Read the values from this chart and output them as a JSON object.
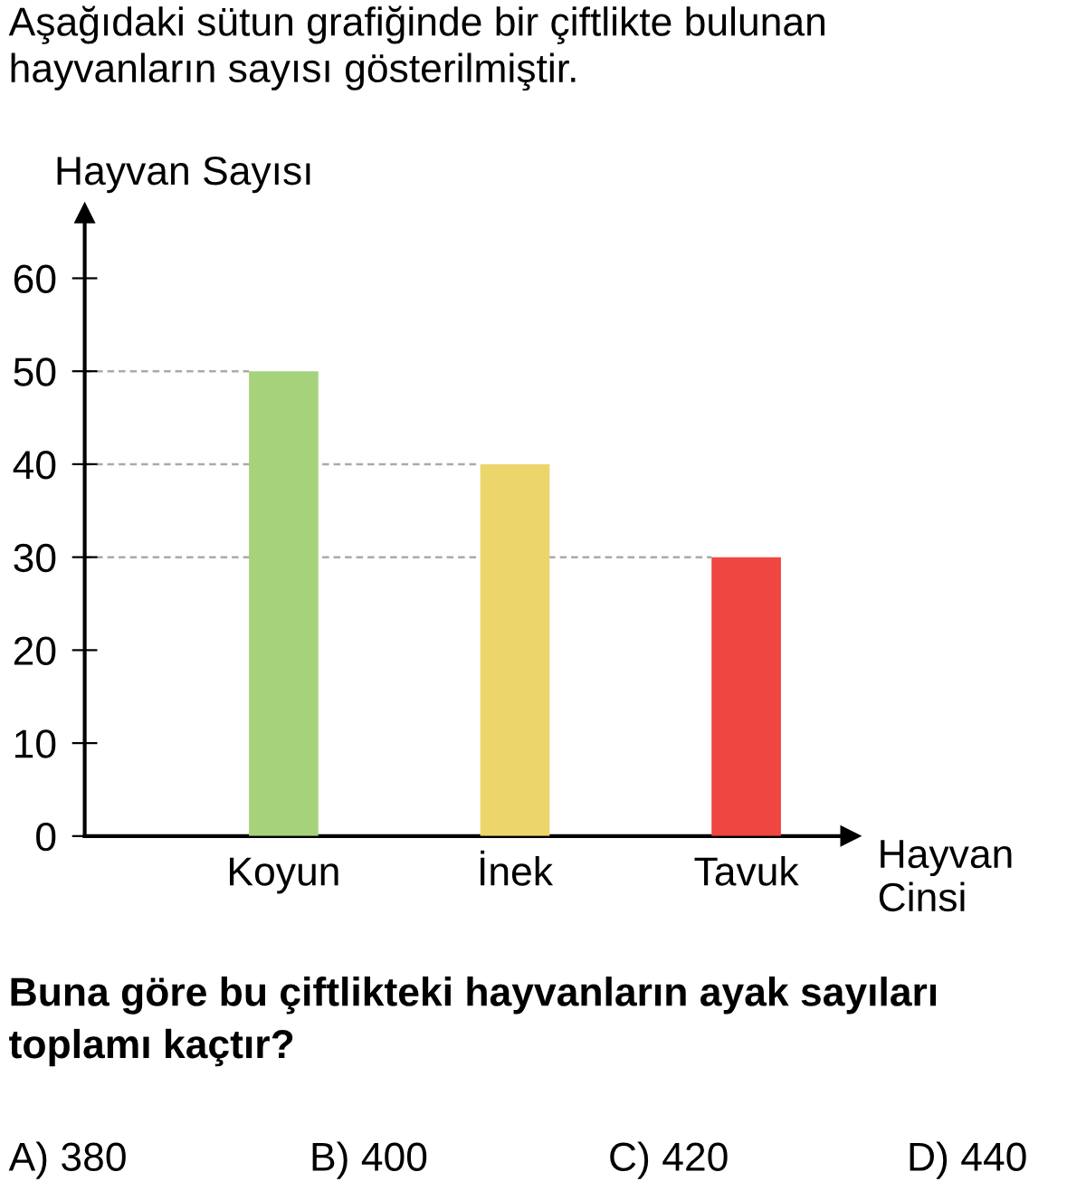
{
  "chart_data": {
    "type": "bar",
    "title": "Aşağıdaki sütun grafiğinde bir çiftlikte bulunan\nhayvanların sayısı gösterilmiştir.",
    "xlabel": "Hayvan\nCinsi",
    "ylabel": "Hayvan Sayısı",
    "categories": [
      "Koyun",
      "İnek",
      "Tavuk"
    ],
    "values": [
      50,
      40,
      30
    ],
    "colors": [
      "#a6d27c",
      "#ecd66c",
      "#ef4641"
    ],
    "ylim": [
      0,
      67
    ],
    "yticks": [
      0,
      10,
      20,
      30,
      40,
      50,
      60
    ],
    "grid": false,
    "legend": false,
    "ref_lines": [
      {
        "axis": "y",
        "value": 50,
        "color": "#aaaaaa",
        "line_style": "dashed"
      },
      {
        "axis": "y",
        "value": 40,
        "color": "#aaaaaa",
        "line_style": "dashed"
      },
      {
        "axis": "y",
        "value": 30,
        "color": "#aaaaaa",
        "line_style": "dashed"
      }
    ],
    "annotations": [
      "Buna göre bu çiftlikteki hayvanların ayak sayıları\ntoplamı kaçtır?",
      "A) 380",
      "B) 400",
      "C) 420",
      "D) 440"
    ]
  }
}
